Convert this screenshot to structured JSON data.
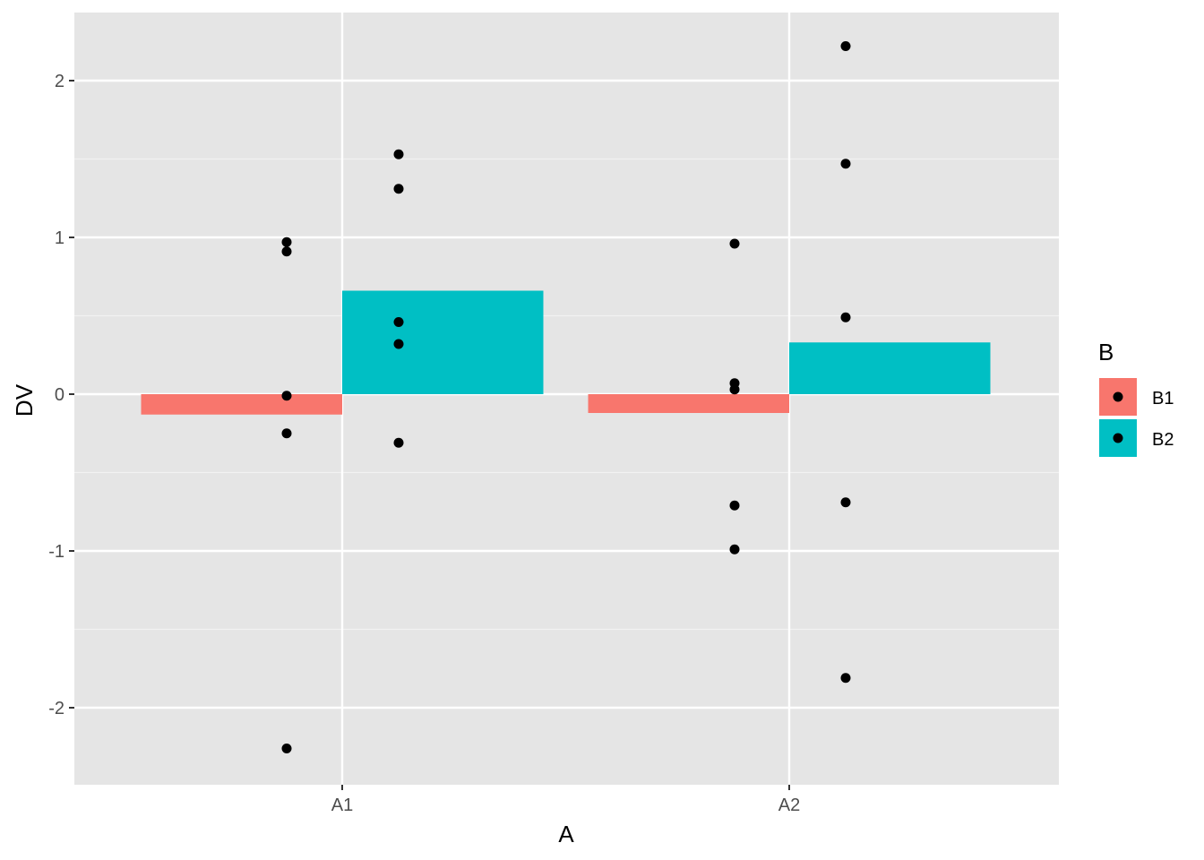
{
  "chart_data": {
    "type": "bar",
    "xlabel": "A",
    "ylabel": "DV",
    "categories": [
      "A1",
      "A2"
    ],
    "ylim": [
      -2.5,
      2.45
    ],
    "yticks": [
      -2,
      -1,
      0,
      1,
      2
    ],
    "ytick_labels": [
      "-2",
      "-1",
      "0",
      "1",
      "2"
    ],
    "grid": true,
    "legend": {
      "title": "B",
      "position": "right",
      "entries": [
        "B1",
        "B2"
      ]
    },
    "series": [
      {
        "name": "B1",
        "color": "#F8766D",
        "values": [
          -0.13,
          -0.12
        ],
        "points": [
          [
            0.97,
            0.91,
            -0.01,
            -0.25,
            -2.26
          ],
          [
            0.96,
            0.07,
            0.03,
            -0.71,
            -0.99
          ]
        ]
      },
      {
        "name": "B2",
        "color": "#00BFC4",
        "values": [
          0.66,
          0.33
        ],
        "points": [
          [
            1.53,
            1.31,
            0.46,
            0.32,
            -0.31
          ],
          [
            2.22,
            1.47,
            0.49,
            -0.69,
            -1.81
          ]
        ]
      }
    ]
  }
}
